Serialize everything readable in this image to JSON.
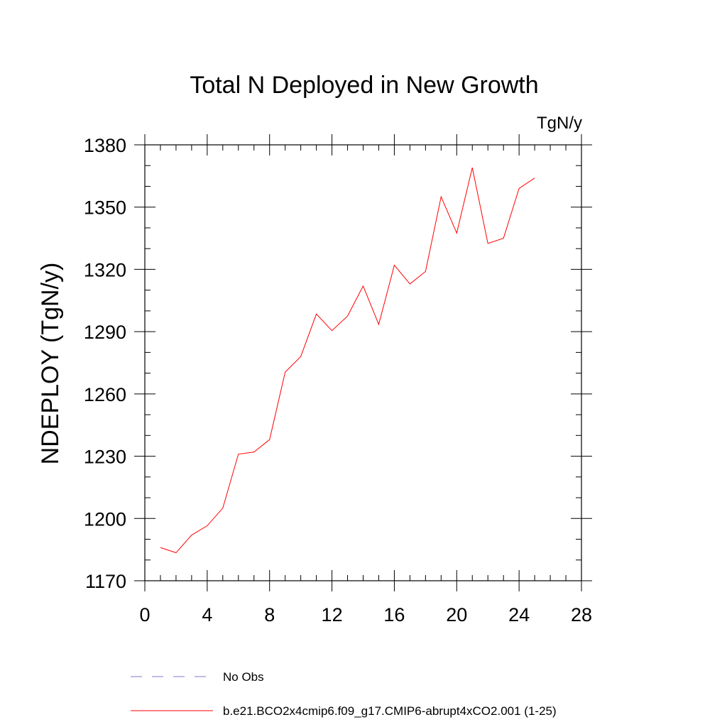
{
  "chart_data": {
    "type": "line",
    "title": "Total N Deployed in New Growth",
    "units_label": "TgN/y",
    "xlabel": "",
    "ylabel": "NDEPLOY  (TgN/y)",
    "xlim": [
      0,
      28
    ],
    "ylim": [
      1170,
      1380
    ],
    "x_ticks": [
      0,
      4,
      8,
      12,
      16,
      20,
      24,
      28
    ],
    "x_tick_labels": [
      "0",
      "4",
      "8",
      "12",
      "16",
      "20",
      "24",
      "28"
    ],
    "x_minor_step": 1,
    "y_ticks": [
      1170,
      1200,
      1230,
      1260,
      1290,
      1320,
      1350,
      1380
    ],
    "y_tick_labels": [
      "1170",
      "1200",
      "1230",
      "1260",
      "1290",
      "1320",
      "1350",
      "1380"
    ],
    "y_minor_step": 10,
    "grid": false,
    "series": [
      {
        "name": "No Obs",
        "style": "dashed",
        "color": "#7b7bd0",
        "x": [],
        "values": []
      },
      {
        "name": "b.e21.BCO2x4cmip6.f09_g17.CMIP6-abrupt4xCO2.001 (1-25)",
        "style": "solid",
        "color": "#ff0000",
        "x": [
          1,
          2,
          3,
          4,
          5,
          6,
          7,
          8,
          9,
          10,
          11,
          12,
          13,
          14,
          15,
          16,
          17,
          18,
          19,
          20,
          21,
          22,
          23,
          24,
          25
        ],
        "values": [
          1186,
          1183.5,
          1192,
          1196.5,
          1205,
          1231,
          1232,
          1238,
          1270.5,
          1278,
          1298.5,
          1290.5,
          1297.5,
          1312,
          1293.5,
          1322,
          1313,
          1319,
          1355,
          1337.5,
          1369,
          1332.5,
          1335,
          1359,
          1364
        ]
      }
    ],
    "legend_position": "bottom"
  }
}
